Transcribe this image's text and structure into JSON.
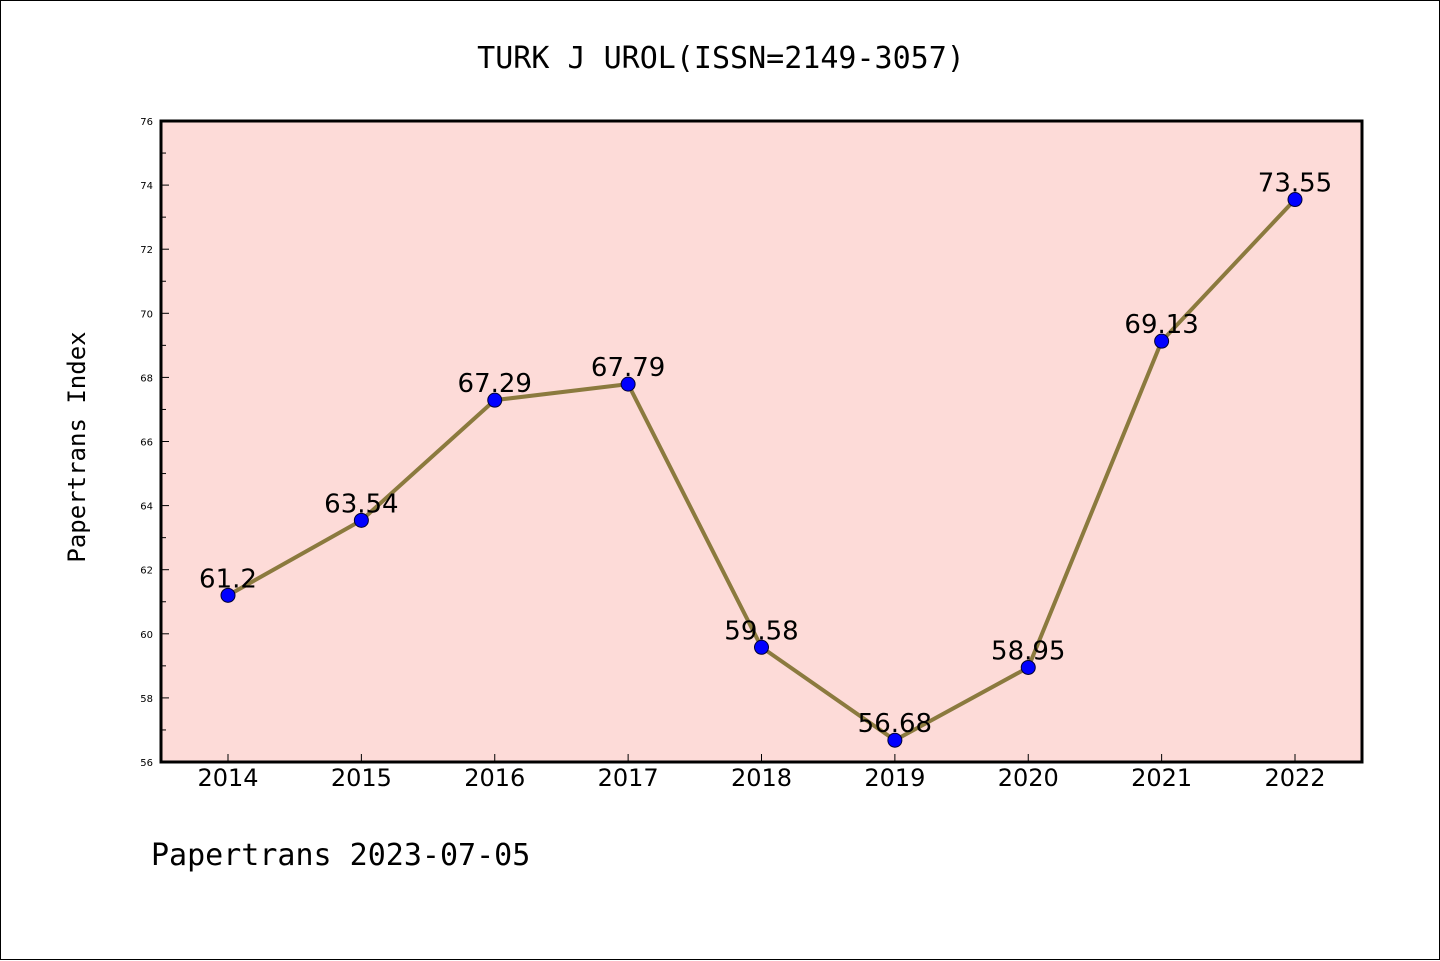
{
  "chart_data": {
    "type": "line",
    "title": "TURK J UROL(ISSN=2149-3057)",
    "xlabel": "",
    "ylabel": "Papertrans Index",
    "categories": [
      "2014",
      "2015",
      "2016",
      "2017",
      "2018",
      "2019",
      "2020",
      "2021",
      "2022"
    ],
    "series": [
      {
        "values": [
          61.2,
          63.54,
          67.29,
          67.79,
          59.58,
          56.68,
          58.95,
          69.13,
          73.55
        ],
        "data_labels": [
          "61.2",
          "63.54",
          "67.29",
          "67.79",
          "59.58",
          "56.68",
          "58.95",
          "69.13",
          "73.55"
        ],
        "line_color": "#8b7a3e",
        "marker_color": "#0000ff"
      }
    ],
    "ylim": [
      56,
      76
    ],
    "yticks": [
      "56",
      "58",
      "60",
      "62",
      "64",
      "66",
      "68",
      "70",
      "72",
      "74",
      "76"
    ],
    "plot_background": "#fddbd8",
    "grid": false,
    "legend": "none"
  },
  "footer": "Papertrans 2023-07-05"
}
